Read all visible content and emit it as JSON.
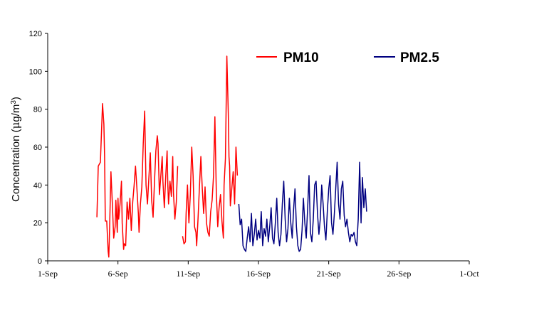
{
  "chart_data": {
    "type": "line",
    "title": "",
    "xlabel": "",
    "ylabel": "Concentration (μg/m³)",
    "ylabel_parts": {
      "main": "Concentration (",
      "mu": "μ",
      "unit": "g/m",
      "sup": "3",
      "close": ")"
    },
    "xlim": [
      0,
      30
    ],
    "ylim": [
      0,
      120
    ],
    "x_ticks": [
      {
        "value": 0,
        "label": "1-Sep"
      },
      {
        "value": 5,
        "label": "6-Sep"
      },
      {
        "value": 10,
        "label": "11-Sep"
      },
      {
        "value": 15,
        "label": "16-Sep"
      },
      {
        "value": 20,
        "label": "21-Sep"
      },
      {
        "value": 25,
        "label": "26-Sep"
      },
      {
        "value": 30,
        "label": "1-Oct"
      }
    ],
    "y_ticks": [
      0,
      20,
      40,
      60,
      80,
      100,
      120
    ],
    "grid": false,
    "legend": "top-right",
    "series": [
      {
        "name": "PM10",
        "color": "#ff0000",
        "segments": [
          [
            [
              3.5,
              23
            ],
            [
              3.6,
              50
            ],
            [
              3.75,
              52
            ],
            [
              3.9,
              83
            ],
            [
              4.0,
              72
            ],
            [
              4.05,
              55
            ],
            [
              4.1,
              21
            ],
            [
              4.2,
              21
            ],
            [
              4.3,
              5
            ],
            [
              4.35,
              2
            ],
            [
              4.4,
              15
            ],
            [
              4.5,
              47
            ],
            [
              4.6,
              30
            ],
            [
              4.7,
              12
            ],
            [
              4.8,
              18
            ],
            [
              4.85,
              32
            ],
            [
              4.95,
              15
            ],
            [
              5.0,
              33
            ],
            [
              5.05,
              22
            ],
            [
              5.15,
              30
            ],
            [
              5.25,
              42
            ],
            [
              5.3,
              20
            ],
            [
              5.4,
              6
            ],
            [
              5.45,
              9
            ],
            [
              5.55,
              8
            ],
            [
              5.65,
              31
            ],
            [
              5.75,
              22
            ],
            [
              5.85,
              33
            ],
            [
              5.95,
              16
            ],
            [
              6.05,
              31
            ],
            [
              6.15,
              40
            ],
            [
              6.25,
              50
            ],
            [
              6.35,
              38
            ],
            [
              6.45,
              25
            ],
            [
              6.5,
              15
            ],
            [
              6.6,
              30
            ],
            [
              6.7,
              39
            ],
            [
              6.8,
              62
            ],
            [
              6.9,
              79
            ],
            [
              7.0,
              40
            ],
            [
              7.1,
              30
            ],
            [
              7.2,
              44
            ],
            [
              7.3,
              57
            ],
            [
              7.4,
              32
            ],
            [
              7.5,
              23
            ],
            [
              7.6,
              42
            ],
            [
              7.7,
              58
            ],
            [
              7.8,
              66
            ],
            [
              7.85,
              62
            ],
            [
              7.95,
              35
            ],
            [
              8.05,
              45
            ],
            [
              8.15,
              55
            ],
            [
              8.2,
              42
            ],
            [
              8.3,
              28
            ],
            [
              8.4,
              45
            ],
            [
              8.5,
              58
            ],
            [
              8.55,
              40
            ],
            [
              8.6,
              30
            ],
            [
              8.7,
              42
            ],
            [
              8.8,
              34
            ],
            [
              8.9,
              55
            ],
            [
              8.95,
              36
            ],
            [
              9.05,
              22
            ],
            [
              9.15,
              31
            ],
            [
              9.25,
              50
            ]
          ],
          [
            [
              9.6,
              13
            ],
            [
              9.7,
              9
            ],
            [
              9.8,
              10
            ],
            [
              9.85,
              25
            ],
            [
              9.95,
              40
            ],
            [
              10.05,
              20
            ],
            [
              10.15,
              35
            ],
            [
              10.25,
              60
            ],
            [
              10.35,
              45
            ],
            [
              10.45,
              18
            ],
            [
              10.55,
              15
            ],
            [
              10.6,
              8
            ],
            [
              10.7,
              22
            ],
            [
              10.8,
              39
            ],
            [
              10.9,
              55
            ],
            [
              11.0,
              38
            ],
            [
              11.1,
              25
            ],
            [
              11.2,
              39
            ],
            [
              11.3,
              20
            ],
            [
              11.4,
              15
            ],
            [
              11.5,
              13
            ],
            [
              11.6,
              26
            ],
            [
              11.7,
              32
            ],
            [
              11.8,
              45
            ],
            [
              11.9,
              76
            ],
            [
              12.0,
              36
            ],
            [
              12.1,
              18
            ],
            [
              12.2,
              28
            ],
            [
              12.3,
              35
            ],
            [
              12.4,
              21
            ],
            [
              12.5,
              12
            ],
            [
              12.55,
              40
            ],
            [
              12.65,
              54
            ],
            [
              12.75,
              108
            ],
            [
              12.85,
              78
            ],
            [
              12.9,
              55
            ],
            [
              12.95,
              50
            ],
            [
              13.0,
              29
            ],
            [
              13.1,
              38
            ],
            [
              13.2,
              47
            ],
            [
              13.3,
              30
            ],
            [
              13.4,
              60
            ],
            [
              13.5,
              45
            ]
          ]
        ]
      },
      {
        "name": "PM2.5",
        "color": "#000080",
        "segments": [
          [
            [
              13.6,
              30
            ],
            [
              13.7,
              19
            ],
            [
              13.8,
              22
            ],
            [
              13.9,
              8
            ],
            [
              14.0,
              6
            ],
            [
              14.1,
              5
            ],
            [
              14.2,
              12
            ],
            [
              14.3,
              18
            ],
            [
              14.4,
              10
            ],
            [
              14.5,
              25
            ],
            [
              14.6,
              8
            ],
            [
              14.7,
              14
            ],
            [
              14.8,
              22
            ],
            [
              14.9,
              11
            ],
            [
              15.0,
              16
            ],
            [
              15.1,
              12
            ],
            [
              15.2,
              26
            ],
            [
              15.3,
              8
            ],
            [
              15.4,
              17
            ],
            [
              15.5,
              13
            ],
            [
              15.6,
              22
            ],
            [
              15.7,
              10
            ],
            [
              15.8,
              18
            ],
            [
              15.9,
              28
            ],
            [
              16.0,
              12
            ],
            [
              16.1,
              9
            ],
            [
              16.2,
              20
            ],
            [
              16.3,
              33
            ],
            [
              16.4,
              15
            ],
            [
              16.5,
              8
            ],
            [
              16.6,
              14
            ],
            [
              16.7,
              30
            ],
            [
              16.8,
              42
            ],
            [
              16.9,
              22
            ],
            [
              17.0,
              10
            ],
            [
              17.1,
              17
            ],
            [
              17.2,
              33
            ],
            [
              17.3,
              20
            ],
            [
              17.4,
              12
            ],
            [
              17.5,
              27
            ],
            [
              17.6,
              38
            ],
            [
              17.7,
              18
            ],
            [
              17.8,
              8
            ],
            [
              17.9,
              5
            ],
            [
              18.0,
              6
            ],
            [
              18.1,
              16
            ],
            [
              18.2,
              33
            ],
            [
              18.3,
              20
            ],
            [
              18.4,
              12
            ],
            [
              18.5,
              28
            ],
            [
              18.6,
              45
            ],
            [
              18.7,
              15
            ],
            [
              18.8,
              10
            ],
            [
              18.9,
              22
            ],
            [
              19.0,
              40
            ],
            [
              19.1,
              42
            ],
            [
              19.2,
              25
            ],
            [
              19.3,
              14
            ],
            [
              19.4,
              22
            ],
            [
              19.5,
              40
            ],
            [
              19.6,
              30
            ],
            [
              19.7,
              18
            ],
            [
              19.8,
              11
            ],
            [
              19.9,
              26
            ],
            [
              20.0,
              38
            ],
            [
              20.1,
              45
            ],
            [
              20.2,
              20
            ],
            [
              20.3,
              14
            ],
            [
              20.4,
              25
            ],
            [
              20.5,
              38
            ],
            [
              20.6,
              52
            ],
            [
              20.7,
              30
            ],
            [
              20.8,
              22
            ],
            [
              20.9,
              38
            ],
            [
              21.0,
              42
            ],
            [
              21.1,
              24
            ],
            [
              21.2,
              18
            ],
            [
              21.3,
              22
            ],
            [
              21.4,
              15
            ],
            [
              21.5,
              10
            ],
            [
              21.6,
              14
            ],
            [
              21.7,
              13
            ],
            [
              21.8,
              15
            ],
            [
              21.9,
              10
            ],
            [
              22.0,
              8
            ],
            [
              22.1,
              22
            ],
            [
              22.2,
              52
            ],
            [
              22.3,
              20
            ],
            [
              22.4,
              44
            ],
            [
              22.5,
              28
            ],
            [
              22.6,
              38
            ],
            [
              22.7,
              26
            ]
          ]
        ]
      }
    ]
  }
}
